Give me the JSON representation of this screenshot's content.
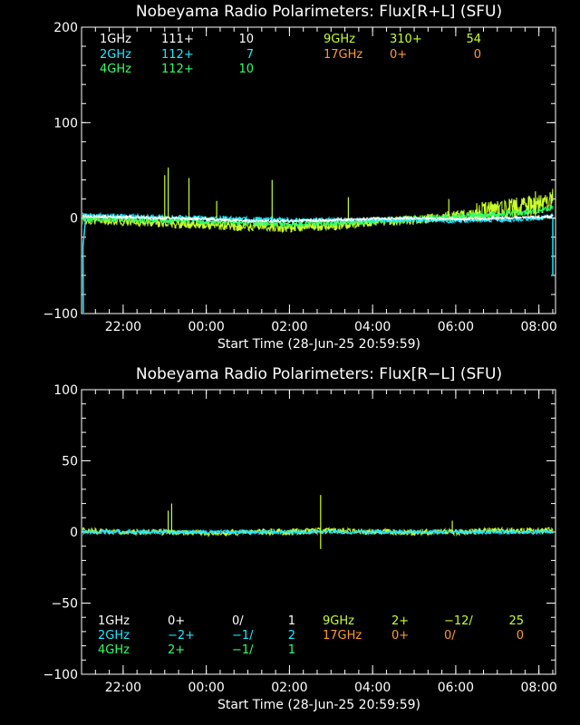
{
  "colors": {
    "bg": "#000000",
    "axis": "#ffffff",
    "1GHz": "#ffffff",
    "2GHz": "#22e6ff",
    "4GHz": "#33ff66",
    "9GHz": "#c8ff2a",
    "17GHz": "#ff9a30"
  },
  "chart_data": [
    {
      "type": "line",
      "title": "Nobeyama Radio Polarimeters: Flux[R+L] (SFU)",
      "xlabel": "Start Time (28-Jun-25 20:59:59)",
      "xlim": [
        "20:59:59",
        "08:24"
      ],
      "ylim": [
        -100,
        200
      ],
      "xticks": [
        "22:00",
        "00:00",
        "02:00",
        "04:00",
        "06:00",
        "08:00"
      ],
      "yticks": [
        "200",
        "100",
        "0",
        "−100"
      ],
      "legend": [
        {
          "label": "1GHz",
          "v1": "111+",
          "v2": "10",
          "color": "#ffffff"
        },
        {
          "label": "2GHz",
          "v1": "112+",
          "v2": "7",
          "color": "#22e6ff"
        },
        {
          "label": "4GHz",
          "v1": "112+",
          "v2": "10",
          "color": "#33ff66"
        },
        {
          "label": "9GHz",
          "v1": "310+",
          "v2": "54",
          "color": "#c8ff2a"
        },
        {
          "label": "17GHz",
          "v1": "0+",
          "v2": "0",
          "color": "#ff9a30"
        }
      ],
      "series": [
        {
          "name": "9GHz",
          "x": [
            "21:00",
            "22:00",
            "23:00",
            "00:00",
            "01:00",
            "02:00",
            "03:00",
            "04:00",
            "05:00",
            "06:00",
            "07:00",
            "08:00",
            "08:20"
          ],
          "y": [
            -2,
            -3,
            -5,
            -7,
            -9,
            -10,
            -8,
            -4,
            -2,
            3,
            8,
            14,
            20
          ]
        },
        {
          "name": "4GHz",
          "x": [
            "21:00",
            "22:00",
            "23:00",
            "00:00",
            "01:00",
            "02:00",
            "03:00",
            "04:00",
            "05:00",
            "06:00",
            "07:00",
            "08:00",
            "08:20"
          ],
          "y": [
            0,
            -1,
            -2,
            -3,
            -5,
            -6,
            -5,
            -3,
            -1,
            1,
            4,
            8,
            12
          ]
        },
        {
          "name": "2GHz",
          "x": [
            "21:00",
            "22:00",
            "23:00",
            "00:00",
            "01:00",
            "02:00",
            "03:00",
            "04:00",
            "05:00",
            "06:00",
            "07:00",
            "08:00",
            "08:20"
          ],
          "y": [
            3,
            2,
            1,
            0,
            -1,
            -2,
            -2,
            -2,
            -2,
            -3,
            -2,
            0,
            3
          ]
        },
        {
          "name": "1GHz",
          "x": [
            "21:00",
            "22:00",
            "23:00",
            "00:00",
            "01:00",
            "02:00",
            "03:00",
            "04:00",
            "05:00",
            "06:00",
            "07:00",
            "08:00",
            "08:20"
          ],
          "y": [
            2,
            1,
            0,
            -1,
            -3,
            -3,
            -2,
            -1,
            0,
            -1,
            0,
            1,
            2
          ]
        }
      ],
      "spikes": [
        {
          "t": "23:00",
          "y": 45
        },
        {
          "t": "23:05",
          "y": 53
        },
        {
          "t": "23:35",
          "y": 42
        },
        {
          "t": "00:15",
          "y": 18
        },
        {
          "t": "01:35",
          "y": 40
        },
        {
          "t": "03:25",
          "y": 22
        },
        {
          "t": "05:50",
          "y": 20
        },
        {
          "t": "07:55",
          "y": 28
        }
      ]
    },
    {
      "type": "line",
      "title": "Nobeyama Radio Polarimeters: Flux[R−L] (SFU)",
      "xlabel": "Start Time (28-Jun-25 20:59:59)",
      "xlim": [
        "20:59:59",
        "08:24"
      ],
      "ylim": [
        -100,
        100
      ],
      "xticks": [
        "22:00",
        "00:00",
        "02:00",
        "04:00",
        "06:00",
        "08:00"
      ],
      "yticks": [
        "100",
        "50",
        "0",
        "−50",
        "−100"
      ],
      "legend": [
        {
          "label": "1GHz",
          "v1": "0+",
          "v2": "0/",
          "v3": "1",
          "color": "#ffffff"
        },
        {
          "label": "2GHz",
          "v1": "−2+",
          "v2": "−1/",
          "v3": "2",
          "color": "#22e6ff"
        },
        {
          "label": "4GHz",
          "v1": "2+",
          "v2": "−1/",
          "v3": "1",
          "color": "#33ff66"
        },
        {
          "label": "9GHz",
          "v1": "2+",
          "v2": "−12/",
          "v3": "25",
          "color": "#c8ff2a"
        },
        {
          "label": "17GHz",
          "v1": "0+",
          "v2": "0/",
          "v3": "0",
          "color": "#ff9a30"
        }
      ],
      "series": [
        {
          "name": "9GHz",
          "x": [
            "21:00",
            "22:00",
            "23:00",
            "00:00",
            "01:00",
            "02:00",
            "03:00",
            "04:00",
            "05:00",
            "06:00",
            "07:00",
            "08:00",
            "08:20"
          ],
          "y": [
            1,
            0,
            0,
            -1,
            0,
            0,
            1,
            0,
            0,
            0,
            1,
            1,
            1
          ]
        },
        {
          "name": "2GHz",
          "x": [
            "21:00",
            "22:00",
            "23:00",
            "00:00",
            "01:00",
            "02:00",
            "03:00",
            "04:00",
            "05:00",
            "06:00",
            "07:00",
            "08:00",
            "08:20"
          ],
          "y": [
            0,
            0,
            0,
            0,
            0,
            0,
            0,
            0,
            0,
            0,
            0,
            0,
            0
          ]
        }
      ],
      "spikes": [
        {
          "t": "23:05",
          "y": 15
        },
        {
          "t": "23:10",
          "y": 20
        },
        {
          "t": "02:45",
          "y": 26
        },
        {
          "t": "02:45",
          "y": -12
        },
        {
          "t": "05:55",
          "y": 8
        }
      ]
    }
  ]
}
